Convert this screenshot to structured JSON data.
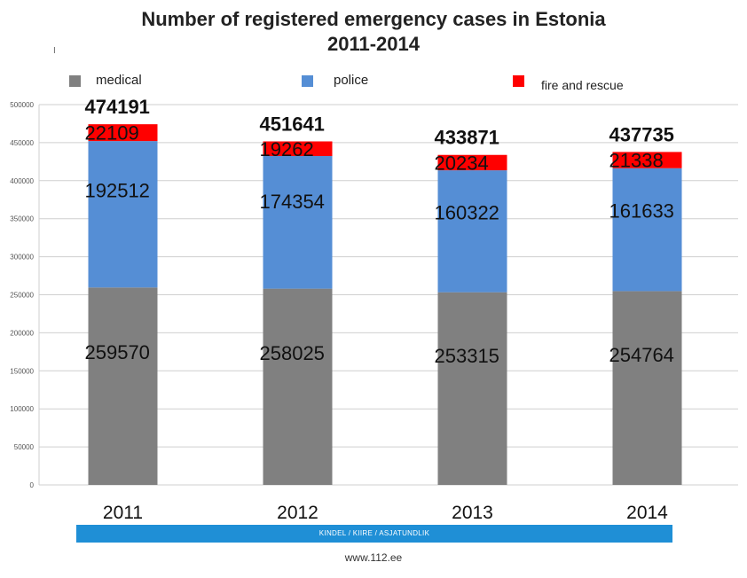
{
  "chart_data": {
    "type": "bar",
    "stacked": true,
    "title": "Number of registered emergency cases in Estonia",
    "subtitle": "2011-2014",
    "categories": [
      "2011",
      "2012",
      "2013",
      "2014"
    ],
    "series": [
      {
        "name": "medical",
        "color": "#808080",
        "values": [
          259570,
          258025,
          253315,
          254764
        ]
      },
      {
        "name": "police",
        "color": "#558ed5",
        "values": [
          192512,
          174354,
          160322,
          161633
        ]
      },
      {
        "name": "fire and rescue",
        "color": "#ff0000",
        "values": [
          22109,
          19262,
          20234,
          21338
        ]
      }
    ],
    "totals": [
      474191,
      451641,
      433871,
      437735
    ],
    "ylim": [
      0,
      500000
    ],
    "yticks": [
      "0",
      "50000",
      "100000",
      "150000",
      "200000",
      "250000",
      "300000",
      "350000",
      "400000",
      "450000",
      "500000"
    ],
    "grid": true,
    "legend": "top"
  },
  "footer": {
    "band_text": "KINDEL / KIIRE / ASJATUNDLIK",
    "website": "www.112.ee"
  },
  "stray_mark": "I"
}
